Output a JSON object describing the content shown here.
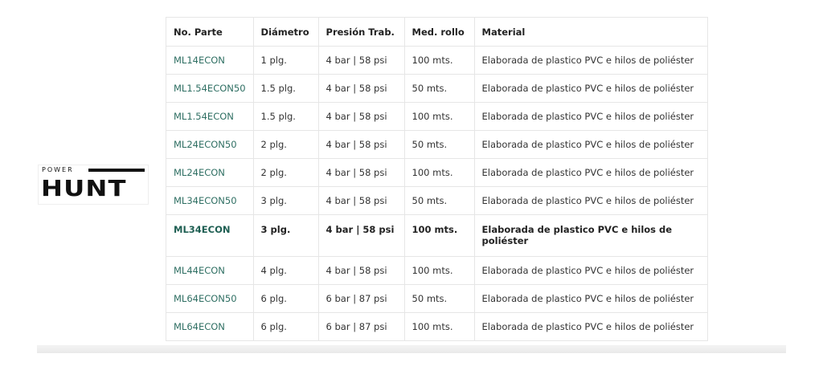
{
  "logo": {
    "top": "POWER",
    "main": "HUNT"
  },
  "table": {
    "headers": [
      "No. Parte",
      "Diámetro",
      "Presión Trab.",
      "Med. rollo",
      "Material"
    ],
    "rows": [
      [
        "ML14ECON",
        "1 plg.",
        "4 bar | 58 psi",
        "100 mts.",
        "Elaborada de plastico PVC e hilos de poliéster"
      ],
      [
        "ML1.54ECON50",
        "1.5 plg.",
        "4 bar | 58 psi",
        "50 mts.",
        "Elaborada de plastico PVC e hilos de poliéster"
      ],
      [
        "ML1.54ECON",
        "1.5 plg.",
        "4 bar | 58 psi",
        "100 mts.",
        "Elaborada de plastico PVC e hilos de poliéster"
      ],
      [
        "ML24ECON50",
        "2 plg.",
        "4 bar | 58 psi",
        "50 mts.",
        "Elaborada de plastico PVC e hilos de poliéster"
      ],
      [
        "ML24ECON",
        "2 plg.",
        "4 bar | 58 psi",
        "100 mts.",
        "Elaborada de plastico PVC e hilos de poliéster"
      ],
      [
        "ML34ECON50",
        "3 plg.",
        "4 bar | 58 psi",
        "50 mts.",
        "Elaborada de plastico PVC e hilos de poliéster"
      ],
      [
        "ML34ECON",
        "3 plg.",
        "4 bar | 58 psi",
        "100 mts.",
        "Elaborada de plastico PVC e hilos de poliéster"
      ],
      [
        "ML44ECON",
        "4 plg.",
        "4 bar | 58 psi",
        "100 mts.",
        "Elaborada de plastico PVC e hilos de poliéster"
      ],
      [
        "ML64ECON50",
        "6 plg.",
        "6 bar | 87 psi",
        "50 mts.",
        "Elaborada de plastico PVC e hilos de poliéster"
      ],
      [
        "ML64ECON",
        "6 plg.",
        "6 bar | 87 psi",
        "100 mts.",
        "Elaborada de plastico PVC e hilos de poliéster"
      ]
    ],
    "highlighted_row": 6
  },
  "colors": {
    "part_link": "#2f6f63",
    "border": "#e6e6e6"
  }
}
